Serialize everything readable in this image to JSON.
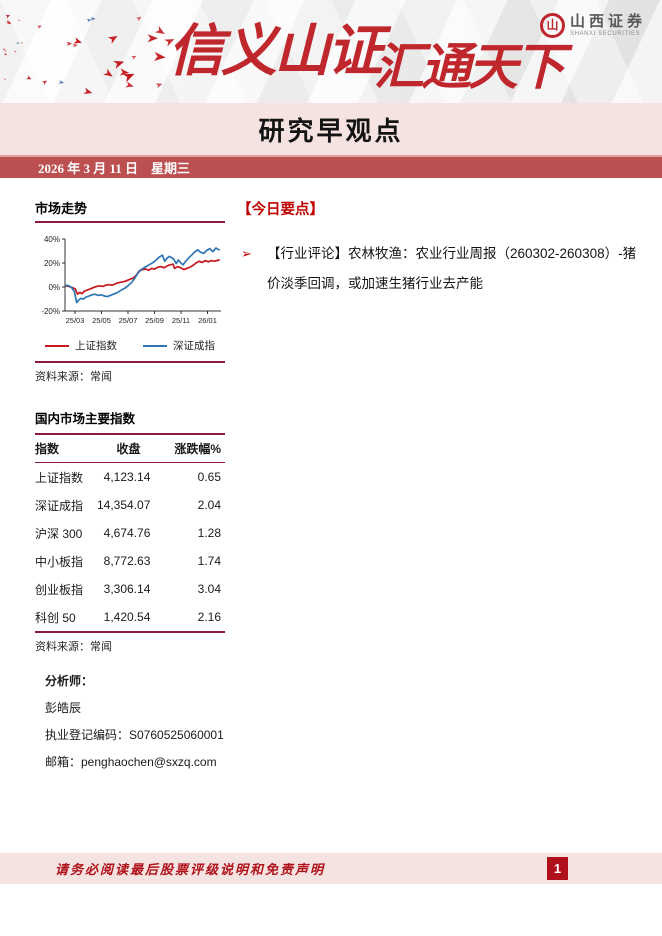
{
  "banner": {
    "slogan_part1": "信义山证",
    "slogan_part2": "汇通天下",
    "logo_name_cn": "山西证券",
    "logo_name_en": "SHANXI SECURITIES",
    "logo_glyph": "山"
  },
  "header": {
    "title": "研究早观点",
    "date": "2026 年 3 月 11 日　星期三"
  },
  "left": {
    "market_trend_title": "市场走势",
    "chart_source": "资料来源：常闻",
    "indices_title": "国内市场主要指数",
    "table": {
      "headers": [
        "指数",
        "收盘",
        "涨跌幅%"
      ],
      "rows": [
        [
          "上证指数",
          "4,123.14",
          "0.65"
        ],
        [
          "深证成指",
          "14,354.07",
          "2.04"
        ],
        [
          "沪深 300",
          "4,674.76",
          "1.28"
        ],
        [
          "中小板指",
          "8,772.63",
          "1.74"
        ],
        [
          "创业板指",
          "3,306.14",
          "3.04"
        ],
        [
          "科创 50",
          "1,420.54",
          "2.16"
        ]
      ]
    },
    "table_source": "资料来源：常闻",
    "analyst": {
      "label": "分析师：",
      "name": "彭皓辰",
      "license": "执业登记编码：S0760525060001",
      "email": "邮箱：penghaochen@sxzq.com"
    }
  },
  "right": {
    "highlights_title": "【今日要点】",
    "bullet_glyph": "➢",
    "items": [
      "【行业评论】农林牧渔：农业行业周报（260302-260308）-猪价淡季回调，或加速生猪行业去产能"
    ]
  },
  "footer": {
    "disclaimer": "请务必阅读最后股票评级说明和免责声明",
    "page_number": "1"
  },
  "colors": {
    "accent_red": "#C00000",
    "rule_maroon": "#8C1A3B",
    "date_bar": "#BC5051",
    "band_pink": "#F5E3E1",
    "footer_red": "#B0121B",
    "banner_calligraphy": "#C0272D",
    "chart_red": "#C8161E",
    "chart_blue": "#2E75B6"
  },
  "chart_data": {
    "type": "line",
    "title": "市场走势",
    "x_ticks": [
      "25/03",
      "25/05",
      "25/07",
      "25/09",
      "25/11",
      "26/01"
    ],
    "y_ticks": [
      40,
      20,
      0,
      -20
    ],
    "ylim": [
      -20,
      40
    ],
    "legend_position": "bottom",
    "grid": false,
    "series": [
      {
        "name": "上证指数",
        "color": "#C8161E",
        "points": [
          [
            0,
            1
          ],
          [
            0.02,
            0.5
          ],
          [
            0.04,
            -0.5
          ],
          [
            0.06,
            -1.5
          ],
          [
            0.075,
            -6
          ],
          [
            0.09,
            -4.5
          ],
          [
            0.105,
            -5.5
          ],
          [
            0.12,
            -3.5
          ],
          [
            0.14,
            -2.5
          ],
          [
            0.16,
            -1.5
          ],
          [
            0.18,
            -0.5
          ],
          [
            0.2,
            0.5
          ],
          [
            0.22,
            1
          ],
          [
            0.24,
            0.5
          ],
          [
            0.26,
            1.5
          ],
          [
            0.28,
            2
          ],
          [
            0.3,
            1.5
          ],
          [
            0.32,
            2.5
          ],
          [
            0.34,
            3.5
          ],
          [
            0.36,
            4
          ],
          [
            0.38,
            4.5
          ],
          [
            0.4,
            5.5
          ],
          [
            0.42,
            6.5
          ],
          [
            0.44,
            7.5
          ],
          [
            0.46,
            10
          ],
          [
            0.48,
            13.5
          ],
          [
            0.5,
            14.5
          ],
          [
            0.52,
            15
          ],
          [
            0.54,
            14
          ],
          [
            0.56,
            15.5
          ],
          [
            0.58,
            15
          ],
          [
            0.6,
            16.5
          ],
          [
            0.62,
            17
          ],
          [
            0.64,
            16
          ],
          [
            0.66,
            17.5
          ],
          [
            0.68,
            18.5
          ],
          [
            0.7,
            19
          ],
          [
            0.71,
            15.5
          ],
          [
            0.73,
            17
          ],
          [
            0.75,
            16
          ],
          [
            0.77,
            14.5
          ],
          [
            0.79,
            15.5
          ],
          [
            0.81,
            16.5
          ],
          [
            0.83,
            18
          ],
          [
            0.85,
            20
          ],
          [
            0.87,
            21.5
          ],
          [
            0.89,
            20.5
          ],
          [
            0.91,
            22
          ],
          [
            0.93,
            21
          ],
          [
            0.95,
            22
          ],
          [
            0.97,
            21.5
          ],
          [
            1,
            22.5
          ]
        ]
      },
      {
        "name": "深证成指",
        "color": "#2E75B6",
        "points": [
          [
            0,
            1.5
          ],
          [
            0.02,
            1
          ],
          [
            0.04,
            -1
          ],
          [
            0.055,
            -4
          ],
          [
            0.07,
            -13
          ],
          [
            0.085,
            -10.5
          ],
          [
            0.1,
            -9.5
          ],
          [
            0.115,
            -10
          ],
          [
            0.13,
            -8.5
          ],
          [
            0.15,
            -7.5
          ],
          [
            0.17,
            -6.5
          ],
          [
            0.19,
            -6
          ],
          [
            0.21,
            -7
          ],
          [
            0.23,
            -6.5
          ],
          [
            0.25,
            -7.5
          ],
          [
            0.27,
            -8
          ],
          [
            0.29,
            -7
          ],
          [
            0.31,
            -6
          ],
          [
            0.33,
            -5
          ],
          [
            0.35,
            -3.5
          ],
          [
            0.37,
            -2
          ],
          [
            0.39,
            -0.5
          ],
          [
            0.41,
            1.5
          ],
          [
            0.43,
            4
          ],
          [
            0.45,
            7.5
          ],
          [
            0.47,
            11.5
          ],
          [
            0.49,
            14.5
          ],
          [
            0.51,
            16
          ],
          [
            0.53,
            17.5
          ],
          [
            0.55,
            19
          ],
          [
            0.57,
            20.5
          ],
          [
            0.59,
            22.5
          ],
          [
            0.61,
            25
          ],
          [
            0.63,
            26.5
          ],
          [
            0.645,
            21.5
          ],
          [
            0.66,
            24
          ],
          [
            0.675,
            25.5
          ],
          [
            0.69,
            24.5
          ],
          [
            0.705,
            23
          ],
          [
            0.72,
            19.5
          ],
          [
            0.735,
            22.5
          ],
          [
            0.75,
            20
          ],
          [
            0.765,
            18.5
          ],
          [
            0.78,
            21
          ],
          [
            0.8,
            24
          ],
          [
            0.82,
            26.5
          ],
          [
            0.84,
            29
          ],
          [
            0.86,
            31
          ],
          [
            0.88,
            29
          ],
          [
            0.9,
            28
          ],
          [
            0.92,
            30.5
          ],
          [
            0.94,
            32
          ],
          [
            0.96,
            29.5
          ],
          [
            0.98,
            32.5
          ],
          [
            1,
            31
          ]
        ]
      }
    ]
  }
}
